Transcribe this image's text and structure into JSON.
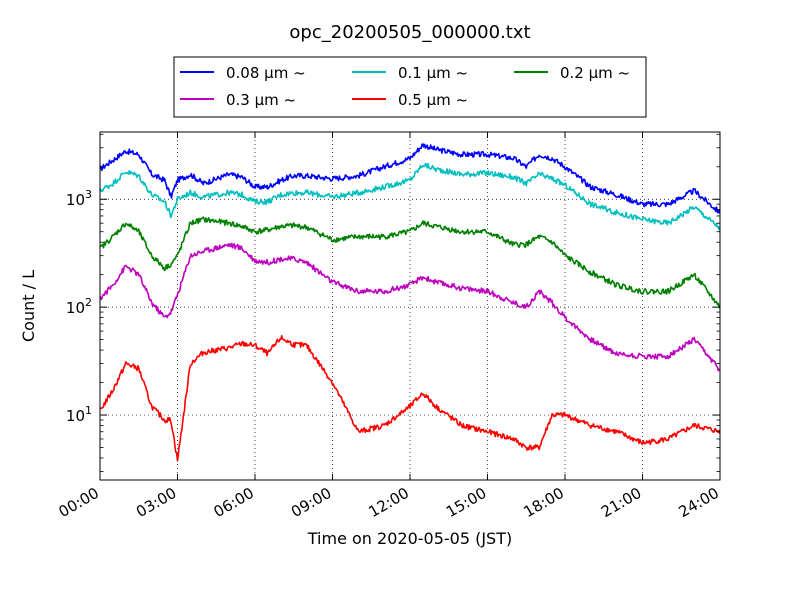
{
  "chart_data": {
    "type": "line",
    "title": "opc_20200505_000000.txt",
    "xlabel": "Time on 2020-05-05 (JST)",
    "ylabel": "Count / L",
    "yscale": "log",
    "xlim": [
      "00:00",
      "24:00"
    ],
    "ylim": [
      2.5,
      4200
    ],
    "x_ticks": [
      "00:00",
      "03:00",
      "06:00",
      "09:00",
      "12:00",
      "15:00",
      "18:00",
      "21:00",
      "24:00"
    ],
    "y_ticks": [
      {
        "value": 10,
        "base": "10",
        "exp": "1"
      },
      {
        "value": 100,
        "base": "10",
        "exp": "2"
      },
      {
        "value": 1000,
        "base": "10",
        "exp": "3"
      }
    ],
    "grid": true,
    "legend": {
      "placement": "top-center",
      "columns": 3,
      "entries": [
        {
          "label": "0.08 μm ~",
          "color": "#0000ff"
        },
        {
          "label": "0.1 μm ~",
          "color": "#00bfbf"
        },
        {
          "label": "0.2 μm ~",
          "color": "#008000"
        },
        {
          "label": "0.3 μm ~",
          "color": "#bf00bf"
        },
        {
          "label": "0.5 μm ~",
          "color": "#ff0000"
        }
      ]
    },
    "x": [
      "00:00",
      "00:30",
      "01:00",
      "01:30",
      "02:00",
      "02:30",
      "02:45",
      "03:00",
      "03:30",
      "04:00",
      "05:00",
      "05:30",
      "06:00",
      "06:30",
      "07:00",
      "07:30",
      "08:00",
      "09:00",
      "10:00",
      "11:00",
      "12:00",
      "12:30",
      "13:00",
      "14:00",
      "15:00",
      "16:00",
      "16:30",
      "17:00",
      "17:30",
      "18:00",
      "19:00",
      "20:00",
      "21:00",
      "22:00",
      "23:00",
      "24:00"
    ],
    "series": [
      {
        "label": "0.08 μm ~",
        "color": "#0000ff",
        "values": [
          1900,
          2300,
          2800,
          2600,
          1700,
          1500,
          1050,
          1500,
          1700,
          1400,
          1700,
          1600,
          1300,
          1300,
          1500,
          1650,
          1650,
          1550,
          1650,
          2000,
          2400,
          3200,
          2900,
          2600,
          2600,
          2400,
          2000,
          2600,
          2400,
          2000,
          1300,
          1100,
          900,
          900,
          1200,
          750
        ]
      },
      {
        "label": "0.1 μm ~",
        "color": "#00bfbf",
        "values": [
          1200,
          1400,
          1800,
          1650,
          1100,
          950,
          700,
          1000,
          1150,
          1050,
          1150,
          1100,
          950,
          950,
          1100,
          1150,
          1150,
          1050,
          1150,
          1300,
          1500,
          2100,
          1900,
          1700,
          1750,
          1600,
          1400,
          1700,
          1550,
          1350,
          900,
          750,
          650,
          600,
          850,
          540
        ]
      },
      {
        "label": "0.2 μm ~",
        "color": "#008000",
        "values": [
          350,
          450,
          600,
          500,
          300,
          230,
          250,
          300,
          600,
          650,
          600,
          560,
          500,
          520,
          560,
          570,
          550,
          420,
          450,
          450,
          500,
          600,
          560,
          500,
          500,
          380,
          380,
          450,
          400,
          300,
          210,
          160,
          140,
          140,
          200,
          100
        ]
      },
      {
        "label": "0.3 μm ~",
        "color": "#bf00bf",
        "values": [
          120,
          160,
          240,
          200,
          110,
          80,
          90,
          130,
          300,
          330,
          380,
          350,
          270,
          260,
          280,
          280,
          260,
          170,
          140,
          140,
          160,
          190,
          170,
          150,
          140,
          110,
          100,
          140,
          110,
          80,
          50,
          37,
          35,
          35,
          50,
          26
        ]
      },
      {
        "label": "0.5 μm ~",
        "color": "#ff0000",
        "values": [
          11,
          17,
          30,
          27,
          12,
          9,
          9,
          3.8,
          30,
          38,
          42,
          46,
          44,
          37,
          52,
          45,
          44,
          20,
          7,
          8,
          12,
          16,
          12,
          8,
          7,
          6,
          5,
          5,
          10,
          10,
          8,
          7,
          5.5,
          6,
          8,
          7
        ]
      }
    ]
  }
}
